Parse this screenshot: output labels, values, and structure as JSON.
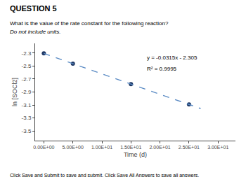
{
  "chart_data": {
    "type": "scatter",
    "title": "QUESTION 5",
    "subtitle": "What is the value of the rate constant for the following reaction?",
    "note": "Do not include units.",
    "footer": "Click Save and Submit to save and submit. Click Save All Answers to save all answers.",
    "xlabel": "Time (d)",
    "ylabel": "ln [SOCl2]",
    "series": [
      {
        "type": "scatter",
        "marker": "circle",
        "color": "#1f3864",
        "x": [
          0,
          5,
          15,
          25
        ],
        "values": [
          -2.305,
          -2.4625,
          -2.7775,
          -3.0925
        ]
      },
      {
        "type": "line",
        "line_style": "dashed",
        "color": "#5b8bc4",
        "x": [
          0,
          27
        ],
        "values": [
          -2.305,
          -3.1555
        ]
      }
    ],
    "annotations": [
      "y = -0.0315x - 2.305",
      "R² = 0.9995"
    ],
    "xlim": [
      -1.5,
      33
    ],
    "ylim": [
      -3.65,
      -2.15
    ],
    "xticks": [
      {
        "value": 0,
        "label": "0.00E+00"
      },
      {
        "value": 5,
        "label": "5.00E+00"
      },
      {
        "value": 10,
        "label": "1.00E+01"
      },
      {
        "value": 15,
        "label": "1.50E+01"
      },
      {
        "value": 20,
        "label": "2.00E+01"
      },
      {
        "value": 25,
        "label": "2.50E+01"
      },
      {
        "value": 30,
        "label": "3.00E+01"
      }
    ],
    "yticks": [
      -2.3,
      -2.5,
      -2.7,
      -2.9,
      -3.1,
      -3.3,
      -3.5
    ],
    "grid": false
  }
}
